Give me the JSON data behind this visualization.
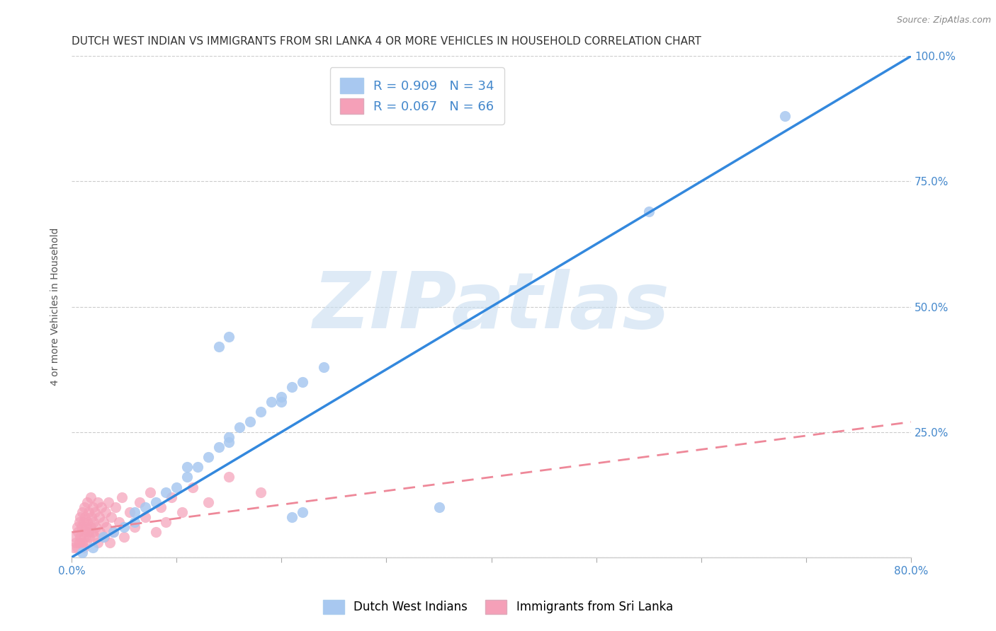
{
  "title": "DUTCH WEST INDIAN VS IMMIGRANTS FROM SRI LANKA 4 OR MORE VEHICLES IN HOUSEHOLD CORRELATION CHART",
  "source": "Source: ZipAtlas.com",
  "ylabel": "4 or more Vehicles in Household",
  "xlim": [
    0.0,
    0.8
  ],
  "ylim": [
    0.0,
    1.0
  ],
  "xtick_positions": [
    0.0,
    0.1,
    0.2,
    0.3,
    0.4,
    0.5,
    0.6,
    0.7,
    0.8
  ],
  "xticklabels": [
    "0.0%",
    "",
    "",
    "",
    "",
    "",
    "",
    "",
    "80.0%"
  ],
  "ytick_positions": [
    0.0,
    0.25,
    0.5,
    0.75,
    1.0
  ],
  "yticklabels_right": [
    "",
    "25.0%",
    "50.0%",
    "75.0%",
    "100.0%"
  ],
  "legend1_label": "R = 0.909   N = 34",
  "legend2_label": "R = 0.067   N = 66",
  "legend_label1_bottom": "Dutch West Indians",
  "legend_label2_bottom": "Immigrants from Sri Lanka",
  "blue_scatter_color": "#a8c8f0",
  "blue_line_color": "#3388dd",
  "pink_scatter_color": "#f5a0b8",
  "pink_line_color": "#ee8899",
  "background_color": "#ffffff",
  "plot_bg_color": "#ffffff",
  "grid_color": "#cccccc",
  "watermark_color": "#c8ddf0",
  "tick_color": "#4488cc",
  "title_color": "#333333",
  "ylabel_color": "#555555",
  "watermark_text": "ZIPatlas",
  "title_fontsize": 11,
  "axis_label_fontsize": 10,
  "tick_fontsize": 11,
  "blue_scatter_x": [
    0.01,
    0.02,
    0.03,
    0.04,
    0.05,
    0.06,
    0.06,
    0.07,
    0.08,
    0.09,
    0.1,
    0.11,
    0.11,
    0.12,
    0.13,
    0.14,
    0.15,
    0.15,
    0.16,
    0.17,
    0.18,
    0.19,
    0.2,
    0.21,
    0.22,
    0.24,
    0.14,
    0.15,
    0.2,
    0.21,
    0.22,
    0.35,
    0.55,
    0.68
  ],
  "blue_scatter_y": [
    0.01,
    0.02,
    0.04,
    0.05,
    0.06,
    0.07,
    0.09,
    0.1,
    0.11,
    0.13,
    0.14,
    0.16,
    0.18,
    0.18,
    0.2,
    0.22,
    0.23,
    0.24,
    0.26,
    0.27,
    0.29,
    0.31,
    0.32,
    0.34,
    0.35,
    0.38,
    0.42,
    0.44,
    0.31,
    0.08,
    0.09,
    0.1,
    0.69,
    0.88
  ],
  "pink_scatter_x": [
    0.002,
    0.003,
    0.004,
    0.005,
    0.005,
    0.006,
    0.007,
    0.007,
    0.008,
    0.008,
    0.009,
    0.01,
    0.01,
    0.011,
    0.011,
    0.012,
    0.012,
    0.013,
    0.013,
    0.014,
    0.014,
    0.015,
    0.015,
    0.016,
    0.016,
    0.017,
    0.018,
    0.018,
    0.019,
    0.02,
    0.02,
    0.021,
    0.022,
    0.022,
    0.023,
    0.025,
    0.025,
    0.026,
    0.027,
    0.028,
    0.03,
    0.031,
    0.032,
    0.033,
    0.035,
    0.036,
    0.038,
    0.04,
    0.042,
    0.045,
    0.048,
    0.05,
    0.055,
    0.06,
    0.065,
    0.07,
    0.075,
    0.08,
    0.085,
    0.09,
    0.095,
    0.105,
    0.115,
    0.13,
    0.15,
    0.18
  ],
  "pink_scatter_y": [
    0.02,
    0.04,
    0.03,
    0.06,
    0.02,
    0.05,
    0.07,
    0.03,
    0.08,
    0.04,
    0.06,
    0.09,
    0.03,
    0.07,
    0.02,
    0.05,
    0.1,
    0.04,
    0.08,
    0.06,
    0.03,
    0.07,
    0.11,
    0.05,
    0.09,
    0.04,
    0.06,
    0.12,
    0.08,
    0.05,
    0.1,
    0.07,
    0.04,
    0.09,
    0.06,
    0.11,
    0.03,
    0.08,
    0.05,
    0.1,
    0.07,
    0.04,
    0.09,
    0.06,
    0.11,
    0.03,
    0.08,
    0.05,
    0.1,
    0.07,
    0.12,
    0.04,
    0.09,
    0.06,
    0.11,
    0.08,
    0.13,
    0.05,
    0.1,
    0.07,
    0.12,
    0.09,
    0.14,
    0.11,
    0.16,
    0.13
  ],
  "blue_line_x0": 0.0,
  "blue_line_y0": 0.0,
  "blue_line_x1": 0.8,
  "blue_line_y1": 1.0,
  "pink_line_x0": 0.0,
  "pink_line_y0": 0.05,
  "pink_line_x1": 0.8,
  "pink_line_y1": 0.27
}
